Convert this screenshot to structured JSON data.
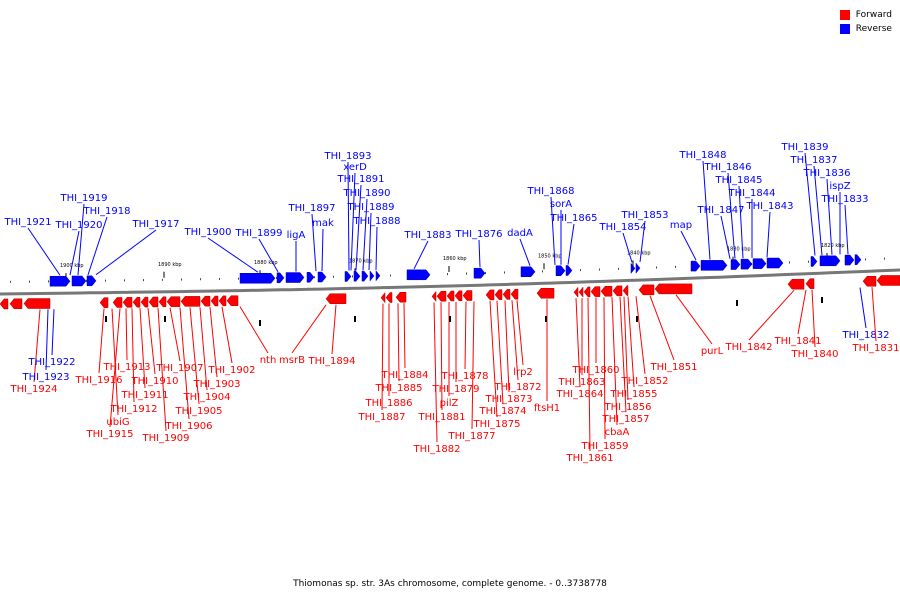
{
  "legend": [
    {
      "label": "Forward",
      "color": "#ff0000"
    },
    {
      "label": "Reverse",
      "color": "#0000ff"
    }
  ],
  "caption": "Thiomonas sp. str. 3As chromosome, complete genome. - 0..3738778",
  "scale_labels": [
    "1900 kbp",
    "1890 kbp",
    "1880 kbp",
    "1870 kbp",
    "1860 kbp",
    "1850 kbp",
    "1840 kbp",
    "1830 kbp",
    "1820 kbp"
  ],
  "forward_genes": [
    "THI_1924",
    "THI_1923",
    "THI_1922",
    "THI_1916",
    "ubiG",
    "THI_1915",
    "THI_1913",
    "THI_1912",
    "THI_1911",
    "THI_1910",
    "THI_1909",
    "THI_1907",
    "THI_1906",
    "THI_1905",
    "THI_1904",
    "THI_1903",
    "THI_1902",
    "nth",
    "msrB",
    "THI_1894",
    "THI_1887",
    "THI_1886",
    "THI_1885",
    "THI_1884",
    "THI_1882",
    "THI_1881",
    "pilZ",
    "THI_1879",
    "THI_1878",
    "THI_1877",
    "THI_1875",
    "THI_1874",
    "THI_1873",
    "THI_1872",
    "lrp2",
    "ftsH1",
    "THI_1864",
    "THI_1863",
    "THI_1861",
    "THI_1860",
    "THI_1859",
    "cbaA",
    "THI_1857",
    "THI_1856",
    "THI_1855",
    "THI_1852",
    "THI_1851",
    "purL",
    "THI_1842",
    "THI_1841",
    "THI_1840",
    "THI_1832",
    "THI_1831"
  ],
  "reverse_genes": [
    "THI_1921",
    "THI_1920",
    "THI_1919",
    "THI_1918",
    "THI_1917",
    "THI_1900",
    "THI_1899",
    "ligA",
    "THI_1897",
    "mak",
    "THI_1893",
    "xerD",
    "THI_1891",
    "THI_1890",
    "THI_1889",
    "THI_1888",
    "THI_1883",
    "THI_1876",
    "dadA",
    "THI_1868",
    "sorA",
    "THI_1865",
    "THI_1854",
    "THI_1853",
    "map",
    "THI_1848",
    "THI_1847",
    "THI_1846",
    "THI_1845",
    "THI_1844",
    "THI_1843",
    "THI_1839",
    "THI_1837",
    "THI_1836",
    "ispZ",
    "THI_1833"
  ]
}
